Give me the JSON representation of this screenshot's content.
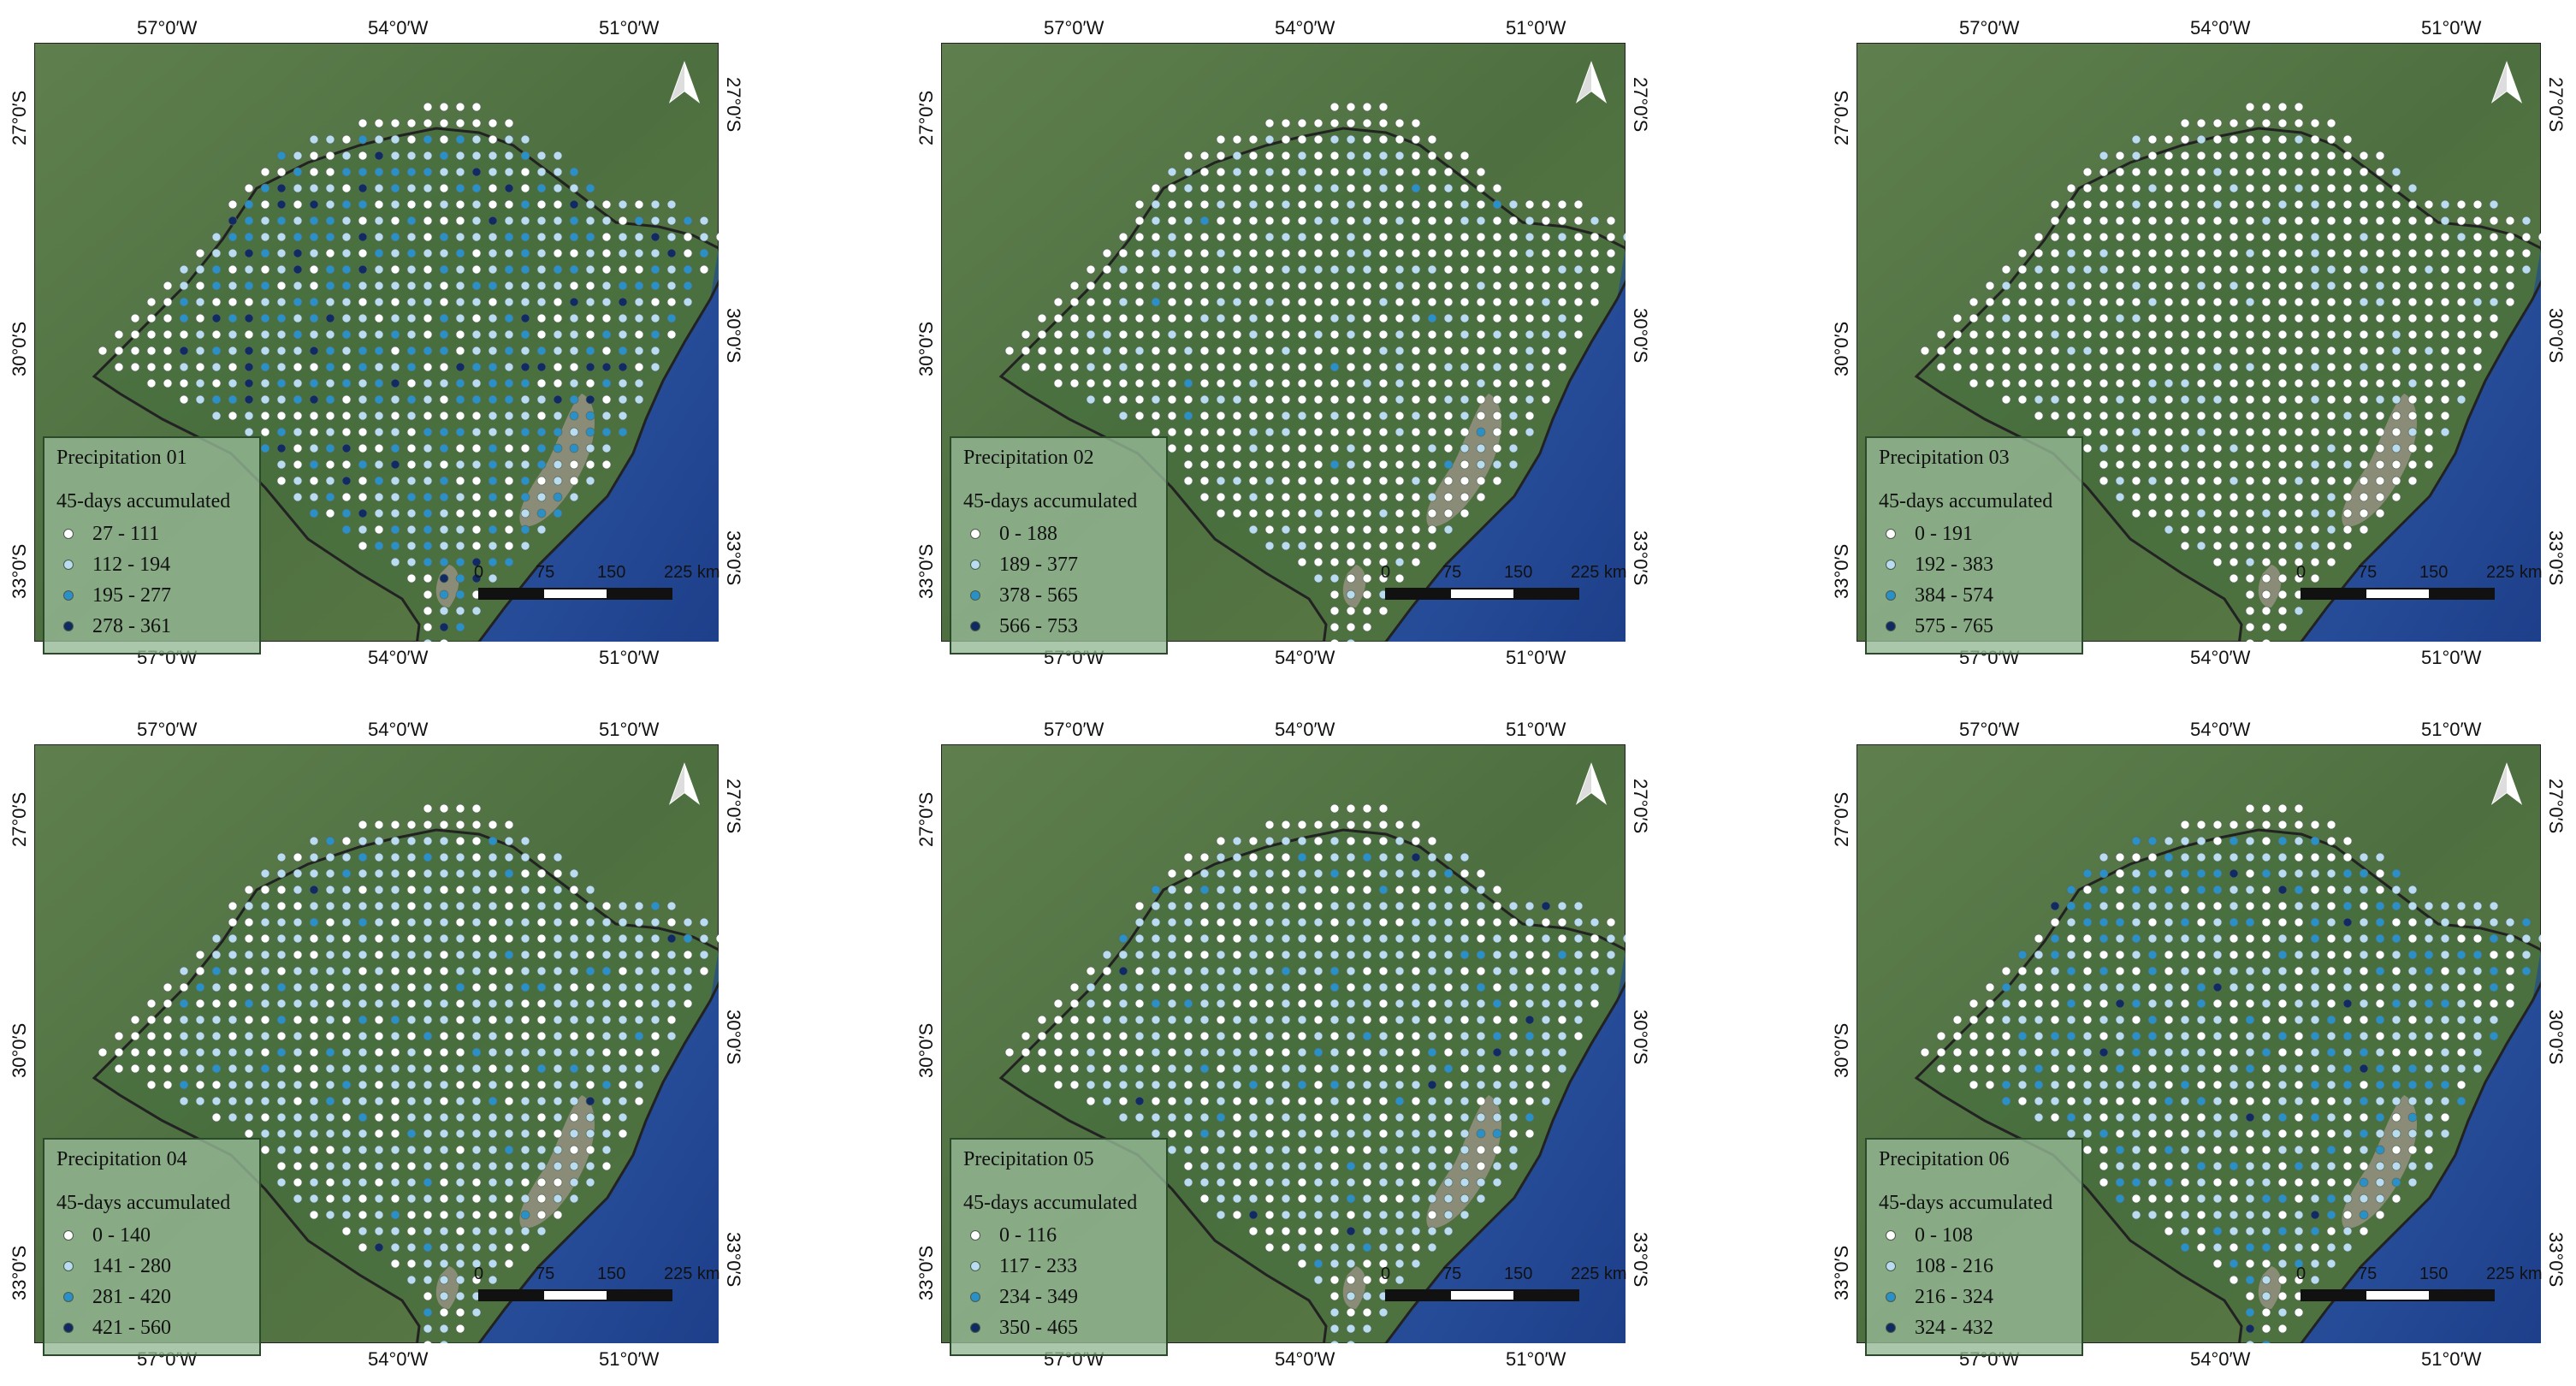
{
  "colors": {
    "class1": "#ffffff",
    "class2": "#b9dcf0",
    "class3": "#2a90c8",
    "class4": "#102a62"
  },
  "legend_subtitle": "45-days accumulated",
  "lon_labels": [
    "57°0′W",
    "54°0′W",
    "51°0′W"
  ],
  "lat_labels": [
    "27°0′S",
    "30°0′S",
    "33°0′S"
  ],
  "scale_labels": [
    "0",
    "75",
    "150",
    "225 km"
  ],
  "north_icon": "north-arrow-icon",
  "panels": [
    {
      "title": "Precipitation 01",
      "classes": [
        "27 - 111",
        "112 - 194",
        "195 - 277",
        "278 - 361"
      ]
    },
    {
      "title": "Precipitation 02",
      "classes": [
        "0 - 188",
        "189 - 377",
        "378 - 565",
        "566 - 753"
      ]
    },
    {
      "title": "Precipitation 03",
      "classes": [
        "0 - 191",
        "192 - 383",
        "384 - 574",
        "575 - 765"
      ]
    },
    {
      "title": "Precipitation 04",
      "classes": [
        "0 - 140",
        "141 - 280",
        "281 - 420",
        "421 - 560"
      ]
    },
    {
      "title": "Precipitation 05",
      "classes": [
        "0 - 116",
        "117 - 233",
        "234 - 349",
        "350 - 465"
      ]
    },
    {
      "title": "Precipitation 06",
      "classes": [
        "0 - 108",
        "108 - 216",
        "216 - 324",
        "324 - 432"
      ]
    }
  ]
}
